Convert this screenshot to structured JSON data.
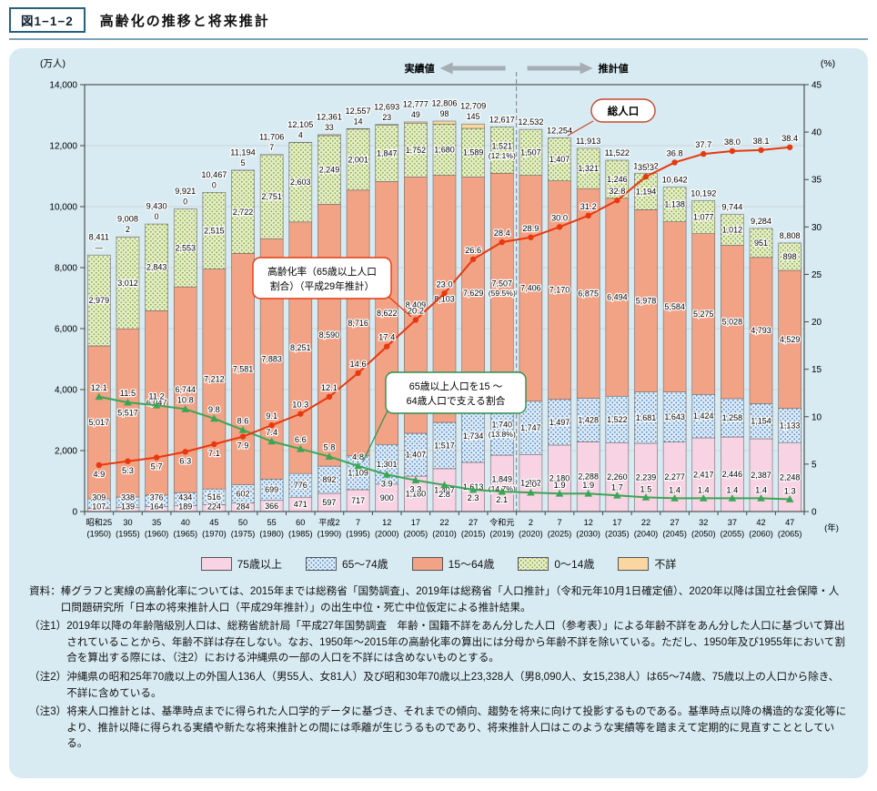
{
  "header": {
    "fig_no": "図1−1−2",
    "title": "高齢化の推移と将来推計"
  },
  "axes": {
    "left_title": "(万人)",
    "left_step": 2000,
    "right_title": "(%)",
    "right_step": 5,
    "x_unit": "(年)"
  },
  "annotations": {
    "actual": "実績値",
    "projection": "推計値",
    "total_pop": "総人口",
    "aging_box": [
      "高齢化率（65歳以上人口",
      "割合）（平成29年推計）"
    ],
    "support_box": [
      "65歳以上人口を15 〜",
      "64歳人口で支える割合"
    ]
  },
  "chart_data": {
    "type": "bar",
    "stacked": true,
    "title": "高齢化の推移と将来推計",
    "categories_era": [
      "昭和25",
      "30",
      "35",
      "40",
      "45",
      "50",
      "55",
      "60",
      "平成2",
      "7",
      "12",
      "17",
      "22",
      "27",
      "令和元",
      "2",
      "7",
      "12",
      "17",
      "22",
      "27",
      "32",
      "37",
      "42",
      "47"
    ],
    "categories_year": [
      "(1950)",
      "(1955)",
      "(1960)",
      "(1965)",
      "(1970)",
      "(1975)",
      "(1980)",
      "(1985)",
      "(1990)",
      "(1995)",
      "(2000)",
      "(2005)",
      "(2010)",
      "(2015)",
      "(2019)",
      "(2020)",
      "(2025)",
      "(2030)",
      "(2035)",
      "(2040)",
      "(2045)",
      "(2050)",
      "(2055)",
      "(2060)",
      "(2065)"
    ],
    "totals": [
      8411,
      9008,
      9430,
      9921,
      10467,
      11194,
      11706,
      12105,
      12361,
      12557,
      12693,
      12777,
      12806,
      12709,
      12617,
      12532,
      12254,
      11913,
      11522,
      11092,
      10642,
      10192,
      9744,
      9284,
      8808
    ],
    "series": [
      {
        "key": "p75",
        "name": "75歳以上",
        "values": [
          107,
          139,
          164,
          189,
          224,
          284,
          366,
          471,
          597,
          717,
          900,
          1160,
          1407,
          1613,
          1849,
          1872,
          2180,
          2288,
          2260,
          2239,
          2277,
          2417,
          2446,
          2387,
          2248
        ]
      },
      {
        "key": "p65_74",
        "name": "65〜74歳",
        "values": [
          309,
          338,
          376,
          434,
          516,
          602,
          699,
          776,
          892,
          1109,
          1301,
          1407,
          1517,
          1734,
          1740,
          1747,
          1497,
          1428,
          1522,
          1681,
          1643,
          1424,
          1258,
          1154,
          1133
        ]
      },
      {
        "key": "p15_64",
        "name": "15〜64歳",
        "values": [
          5017,
          5517,
          6047,
          6744,
          7212,
          7581,
          7883,
          8251,
          8590,
          8716,
          8622,
          8409,
          8103,
          7629,
          7507,
          7406,
          7170,
          6875,
          6494,
          5978,
          5584,
          5275,
          5028,
          4793,
          4529
        ]
      },
      {
        "key": "p0_14",
        "name": "0〜14歳",
        "values": [
          2979,
          3012,
          2843,
          2553,
          2515,
          2722,
          2751,
          2603,
          2249,
          2001,
          1847,
          1752,
          1680,
          1589,
          1521,
          1507,
          1407,
          1321,
          1246,
          1194,
          1138,
          1077,
          1012,
          951,
          898
        ]
      },
      {
        "key": "unknown",
        "name": "不詳",
        "values": [
          0,
          2,
          0,
          0,
          0,
          5,
          7,
          4,
          33,
          14,
          23,
          49,
          98,
          145,
          0,
          0,
          0,
          0,
          0,
          0,
          0,
          0,
          0,
          0,
          0
        ]
      }
    ],
    "unknown_labels": [
      "—",
      "2",
      "0",
      "0",
      "0",
      "5",
      "7",
      "4",
      "33",
      "14",
      "23",
      "49",
      "98",
      "145",
      null,
      null,
      null,
      null,
      null,
      null,
      null,
      null,
      null,
      null,
      null
    ],
    "pct_labels_2019": {
      "index": 14,
      "p75": "(14.7%)",
      "p65_74": "(13.8%)",
      "p15_64": "(59.5%)",
      "p0_14": "(12.1%)"
    },
    "lines": [
      {
        "key": "aging_rate",
        "name": "高齢化率（65歳以上人口割合）",
        "color": "#e8380d",
        "axis": "right",
        "values": [
          4.9,
          5.3,
          5.7,
          6.3,
          7.1,
          7.9,
          9.1,
          10.3,
          12.1,
          14.6,
          17.4,
          20.2,
          23.0,
          26.6,
          28.4,
          28.9,
          30.0,
          31.2,
          32.8,
          35.3,
          36.8,
          37.7,
          38.0,
          38.1,
          38.4
        ]
      },
      {
        "key": "support_ratio",
        "name": "65歳以上人口を15〜64歳人口で支える割合",
        "color": "#3aa655",
        "axis": "right",
        "values": [
          12.1,
          11.5,
          11.2,
          10.8,
          9.8,
          8.6,
          7.4,
          6.6,
          5.8,
          4.8,
          3.9,
          3.3,
          2.8,
          2.3,
          2.1,
          2.0,
          1.9,
          1.9,
          1.7,
          1.5,
          1.4,
          1.4,
          1.4,
          1.4,
          1.3
        ]
      }
    ],
    "ylim_left": [
      0,
      14000
    ],
    "ylim_right": [
      0,
      45
    ],
    "divider_after_index": 14,
    "grid": true,
    "legend_position": "bottom"
  },
  "colors": {
    "panel_bg": "#d8ebf2",
    "bar_75plus": "#f8d3e4",
    "bar_65_74_bg": "#dcebf8",
    "bar_65_74_dot": "#5588c0",
    "bar_15_64": "#f2a285",
    "bar_0_14_bg": "#e6eec9",
    "bar_0_14_dot": "#84a93e",
    "bar_unknown": "#fad7a0",
    "line_aging": "#e8380d",
    "line_support": "#3aa655",
    "accent": "#28607c"
  },
  "notes": {
    "source_label": "資料：",
    "source": "棒グラフと実線の高齢化率については、2015年までは総務省「国勢調査」、2019年は総務省「人口推計」（令和元年10月1日確定値）、2020年以降は国立社会保障・人口問題研究所「日本の将来推計人口（平成29年推計）」の出生中位・死亡中位仮定による推計結果。",
    "items": [
      {
        "label": "（注1）",
        "text": "2019年以降の年齢階級別人口は、総務省統計局「平成27年国勢調査　年齢・国籍不詳をあん分した人口（参考表）」による年齢不詳をあん分した人口に基づいて算出されていることから、年齢不詳は存在しない。なお、1950年〜2015年の高齢化率の算出には分母から年齢不詳を除いている。ただし、1950年及び1955年において割合を算出する際には、（注2）における沖縄県の一部の人口を不詳には含めないものとする。"
      },
      {
        "label": "（注2）",
        "text": "沖縄県の昭和25年70歳以上の外国人136人（男55人、女81人）及び昭和30年70歳以上23,328人（男8,090人、女15,238人）は65〜74歳、75歳以上の人口から除き、不詳に含めている。"
      },
      {
        "label": "（注3）",
        "text": "将来人口推計とは、基準時点までに得られた人口学的データに基づき、それまでの傾向、趨勢を将来に向けて投影するものである。基準時点以降の構造的な変化等により、推計以降に得られる実績や新たな将来推計との間には乖離が生じうるものであり、将来推計人口はこのような実績等を踏まえて定期的に見直すこととしている。"
      }
    ]
  }
}
